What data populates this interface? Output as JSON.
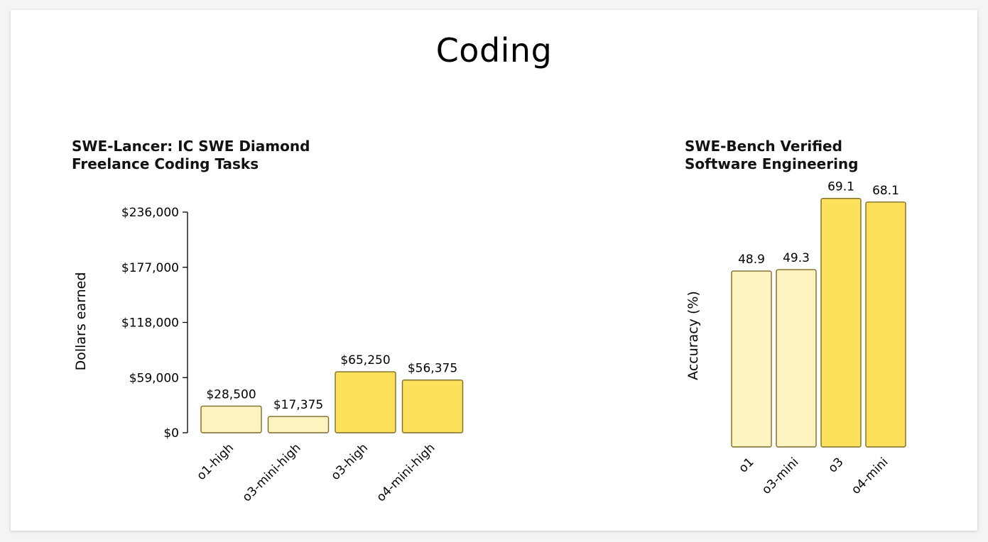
{
  "page": {
    "title": "Coding"
  },
  "colors": {
    "light_bar": "#fdf3c0",
    "dark_bar": "#fde15c",
    "bar_stroke": "#7d6b24",
    "axis": "#000000",
    "text": "#000000"
  },
  "chart_data": [
    {
      "type": "bar",
      "title_lines": [
        "SWE-Lancer: IC SWE Diamond",
        "Freelance Coding Tasks"
      ],
      "ylabel": "Dollars earned",
      "xlabel": "",
      "ylim": [
        0,
        236000
      ],
      "yticks": [
        0,
        59000,
        118000,
        177000,
        236000
      ],
      "ytick_labels": [
        "$0",
        "$59,000",
        "$118,000",
        "$177,000",
        "$236,000"
      ],
      "categories": [
        "o1-high",
        "o3-mini-high",
        "o3-high",
        "o4-mini-high"
      ],
      "values": [
        28500,
        17375,
        65250,
        56375
      ],
      "value_labels": [
        "$28,500",
        "$17,375",
        "$65,250",
        "$56,375"
      ],
      "bar_shades": [
        "light",
        "light",
        "dark",
        "dark"
      ],
      "grid": false,
      "show_y_axis": true
    },
    {
      "type": "bar",
      "title_lines": [
        "SWE-Bench Verified",
        "Software Engineering"
      ],
      "ylabel": "Accuracy (%)",
      "xlabel": "",
      "ylim": [
        0,
        72
      ],
      "categories": [
        "o1",
        "o3-mini",
        "o3",
        "o4-mini"
      ],
      "values": [
        48.9,
        49.3,
        69.1,
        68.1
      ],
      "value_labels": [
        "48.9",
        "49.3",
        "69.1",
        "68.1"
      ],
      "bar_shades": [
        "light",
        "light",
        "dark",
        "dark"
      ],
      "grid": false,
      "show_y_axis": false
    }
  ]
}
